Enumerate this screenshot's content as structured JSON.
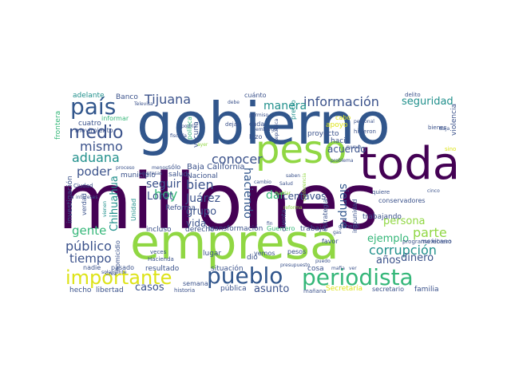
{
  "colors": {
    "background": "#ffffff",
    "dark_purple": "#440154",
    "blue": "#31568c",
    "slate": "#3b528b",
    "teal": "#21908c",
    "green": "#35b779",
    "lime": "#90d743",
    "yellow": "#dde318"
  },
  "words": [
    "gobierno",
    "millones",
    "empresa",
    "toda",
    "peso",
    "país",
    "periodista",
    "pueblo",
    "importante",
    "medio",
    "información",
    "Tijuana",
    "mismo",
    "aduana",
    "conocer",
    "corrupción",
    "hoy",
    "seguir",
    "bien",
    "Juárez",
    "Loret",
    "público",
    "tiempo",
    "gente",
    "parte",
    "persona",
    "poder",
    "casos",
    "asunto",
    "manera",
    "seguridad",
    "haciendo",
    "dar",
    "centavos",
    "acuerdo",
    "siempre",
    "ejemplo",
    "años",
    "dinero",
    "grupo",
    "vida",
    "Chihuahua",
    "Baja California",
    "Reforma",
    "Nacional",
    "municipio",
    "salud",
    "homicidio",
    "investigación",
    "frontera",
    "adelante",
    "Banco",
    "movimiento",
    "cuatro",
    "libertad",
    "hecho",
    "nadie",
    "pasado",
    "resultado",
    "situación",
    "incluso",
    "derecho",
    "transformación",
    "Guerrero",
    "trabajo",
    "Secretaría",
    "secretario",
    "familia",
    "mexicano",
    "trabajando",
    "violencia",
    "cuánto",
    "cada",
    "hizo",
    "proyecto",
    "hacia",
    "apoyo",
    "cabo",
    "precio",
    "vacuna",
    "política",
    "quiere",
    "cuenta",
    "estrategia",
    "impunidad",
    "favor",
    "pesos",
    "vemos",
    "dio",
    "lugar",
    "cosa",
    "conservadores",
    "sólo",
    "veces",
    "Hacienda",
    "pública",
    "semana",
    "historia",
    "mañana",
    "delito",
    "bienes",
    "hicieron",
    "programa",
    "febrero",
    "Ciudad",
    "informar",
    "verdad",
    "Unidad",
    "empresas",
    "proceso",
    "general",
    "puedo",
    "cinco",
    "sino",
    "dejar",
    "cambio",
    "problema",
    "saben",
    "hablar",
    "podría",
    "fiscalía",
    "Televisa",
    "debe",
    "permiso",
    "embargo",
    "República",
    "conferencia",
    "nuevo",
    "menos",
    "ayer",
    "mafia",
    "presupuesto",
    "Baja",
    "personal",
    "ver",
    "Salud",
    "fin",
    "ex",
    "gas",
    "solamente",
    "intereses",
    "Crea",
    "reforma",
    "vienen"
  ]
}
